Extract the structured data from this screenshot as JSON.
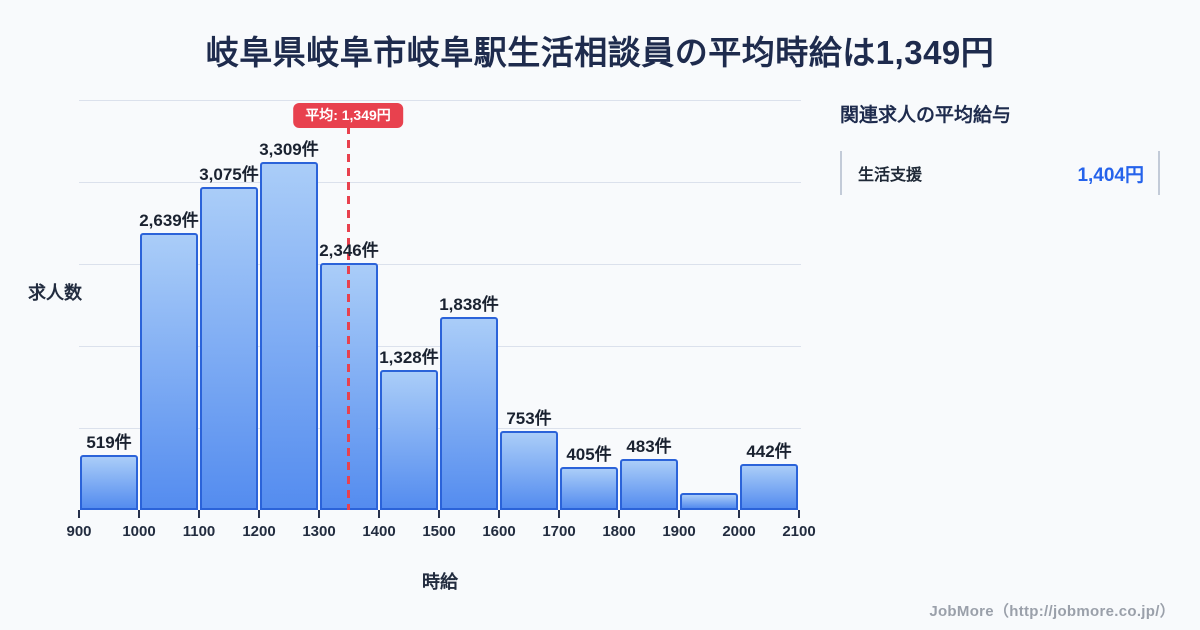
{
  "page": {
    "title": "岐阜県岐阜市岐阜駅生活相談員の平均時給は1,349円",
    "footer": "JobMore（http://jobmore.co.jp/）"
  },
  "chart_data": {
    "type": "bar",
    "title": "岐阜県岐阜市岐阜駅生活相談員の平均時給は1,349円",
    "xlabel": "時給",
    "ylabel": "求人数",
    "unit": "件",
    "ylim": [
      0,
      3900
    ],
    "grid": true,
    "gridline_count": 5,
    "x_ticks": [
      900,
      1000,
      1100,
      1200,
      1300,
      1400,
      1500,
      1600,
      1700,
      1800,
      1900,
      2000,
      2100
    ],
    "bin_width": 100,
    "bins": [
      {
        "range": [
          900,
          1000
        ],
        "value": 519,
        "label": "519件"
      },
      {
        "range": [
          1000,
          1100
        ],
        "value": 2639,
        "label": "2,639件"
      },
      {
        "range": [
          1100,
          1200
        ],
        "value": 3075,
        "label": "3,075件"
      },
      {
        "range": [
          1200,
          1300
        ],
        "value": 3309,
        "label": "3,309件"
      },
      {
        "range": [
          1300,
          1400
        ],
        "value": 2346,
        "label": "2,346件"
      },
      {
        "range": [
          1400,
          1500
        ],
        "value": 1328,
        "label": "1,328件"
      },
      {
        "range": [
          1500,
          1600
        ],
        "value": 1838,
        "label": "1,838件"
      },
      {
        "range": [
          1600,
          1700
        ],
        "value": 753,
        "label": "753件"
      },
      {
        "range": [
          1700,
          1800
        ],
        "value": 405,
        "label": "405件"
      },
      {
        "range": [
          1800,
          1900
        ],
        "value": 483,
        "label": "483件"
      },
      {
        "range": [
          1900,
          2000
        ],
        "value": 160,
        "label": ""
      },
      {
        "range": [
          2000,
          2100
        ],
        "value": 442,
        "label": "442件"
      }
    ],
    "average": {
      "value": 1349,
      "label": "平均: 1,349円"
    },
    "colors": {
      "bar_top": "#aacdf8",
      "bar_bottom": "#548cef",
      "bar_border": "#2b63d9",
      "average": "#e8414e",
      "gridline": "#dbe1ec",
      "value_accent": "#2563eb"
    }
  },
  "side_panel": {
    "heading": "関連求人の平均給与",
    "rows": [
      {
        "label": "生活支援",
        "value": "1,404円"
      }
    ]
  }
}
